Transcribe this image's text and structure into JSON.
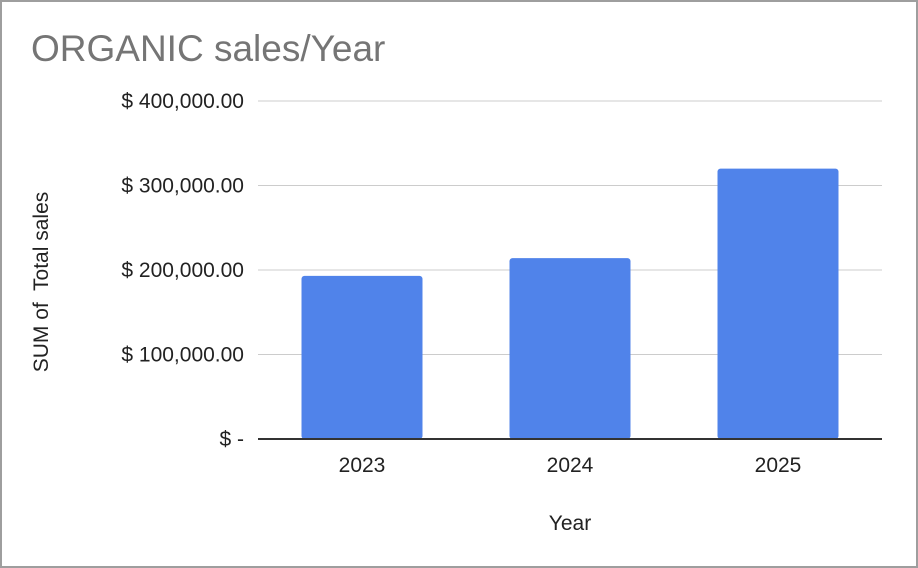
{
  "chart_data": {
    "type": "bar",
    "title": "ORGANIC sales/Year",
    "xlabel": "Year",
    "ylabel": "SUM of  Total sales",
    "categories": [
      "2023",
      "2024",
      "2025"
    ],
    "series": [
      {
        "values": [
          193000,
          214000,
          320000
        ]
      }
    ],
    "ylim": [
      0,
      400000
    ],
    "yticks": [
      0,
      100000,
      200000,
      300000,
      400000
    ],
    "ytick_labels": [
      "$ -",
      "$ 100,000.00",
      "$ 200,000.00",
      "$ 300,000.00",
      "$ 400,000.00"
    ],
    "bar_color": "#5083ea",
    "grid": true,
    "legend": "none"
  }
}
